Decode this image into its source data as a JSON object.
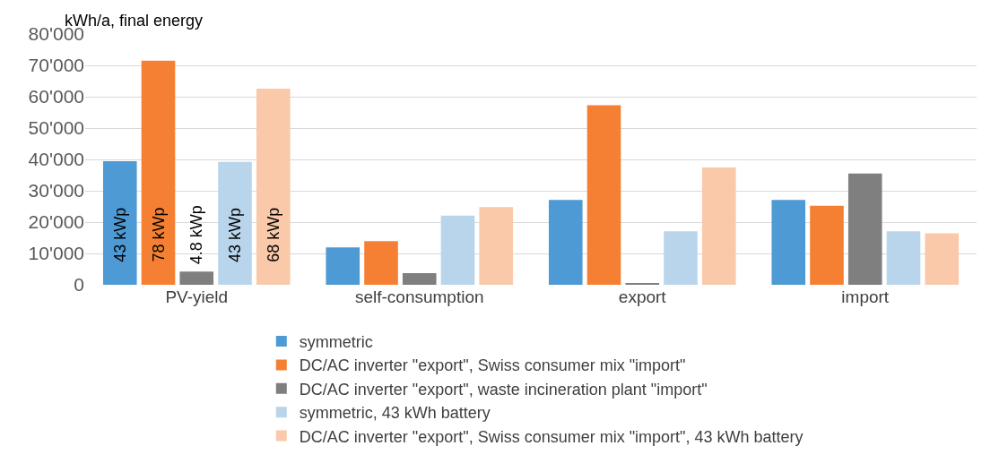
{
  "chart_data": {
    "type": "bar",
    "ylabel": "kWh/a, final energy",
    "categories": [
      "PV-yield",
      "self-consumption",
      "export",
      "import"
    ],
    "ylim": [
      0,
      80000
    ],
    "yticks": [
      0,
      {
        "value": 10000,
        "label": "10'000"
      },
      {
        "value": 20000,
        "label": "20'000"
      },
      {
        "value": 30000,
        "label": "30'000"
      },
      {
        "value": 40000,
        "label": "40'000"
      },
      {
        "value": 50000,
        "label": "50'000"
      },
      {
        "value": 60000,
        "label": "60'000"
      },
      {
        "value": 70000,
        "label": "70'000"
      },
      {
        "value": 80000,
        "label": "80'000"
      }
    ],
    "grid": "y",
    "legend": "bottom",
    "annotations": [
      "43 kWp",
      "78 kWp",
      "4.8 kWp",
      "43 kWp",
      "68 kWp"
    ],
    "series": [
      {
        "name": "symmetric",
        "color": "#4e9ad4",
        "values": [
          39400,
          11900,
          27100,
          27100
        ]
      },
      {
        "name": "DC/AC inverter \"export\", Swiss consumer mix \"import\"",
        "color": "#f58033",
        "values": [
          71500,
          13900,
          57300,
          25200
        ]
      },
      {
        "name": "DC/AC inverter \"export\", waste incineration plant \"import\"",
        "color": "#7f7f7f",
        "values": [
          4200,
          3700,
          500,
          35500
        ]
      },
      {
        "name": "symmetric, 43 kWh battery",
        "color": "#b9d5ec",
        "values": [
          39200,
          22100,
          17100,
          17100
        ]
      },
      {
        "name": "DC/AC inverter \"export\", Swiss consumer mix \"import\", 43 kWh battery",
        "color": "#f9c9aa",
        "values": [
          62600,
          24800,
          37400,
          16400
        ]
      }
    ]
  }
}
